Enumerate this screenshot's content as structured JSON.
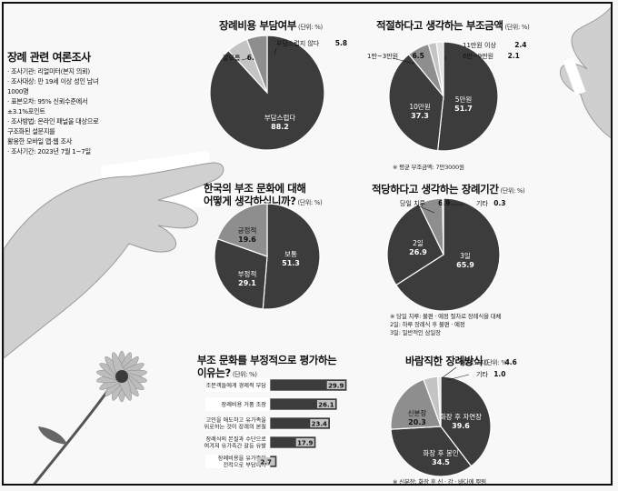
{
  "colors": {
    "dark": "#3c3c3c",
    "mid": "#8e8e8e",
    "light": "#c4c4c4",
    "pale": "#e2e2e2"
  },
  "survey": {
    "title": "장례 관련 여론조사",
    "lines": [
      "· 조사기관: 리얼미터(본지 의뢰)",
      "· 조사대상: 만 19세 이상 성인 남녀",
      "   1000명",
      "· 표본오차: 95% 신뢰수준에서",
      "   ±3.1%포인트",
      "· 조사방법: 온라인 패널을 대상으로",
      "   구조화된 설문지를",
      "   활용한 모바일 앱·웹 조사",
      "· 조사기간: 2023년 7월 1~7일"
    ]
  },
  "chart_data": [
    {
      "type": "pie",
      "title": "장례비용 부담여부",
      "unit": "(단위: %)",
      "slices": [
        {
          "label": "부담스럽다",
          "value": 88.2
        },
        {
          "label": "잘모름",
          "value": 6.0
        },
        {
          "label": "부담스럽지 않다",
          "value": 5.8
        }
      ]
    },
    {
      "type": "pie",
      "title": "적절하다고 생각하는 부조금액",
      "unit": "(단위: %)",
      "slices": [
        {
          "label": "5만원",
          "value": 51.7
        },
        {
          "label": "10만원",
          "value": 37.3
        },
        {
          "label": "1만~3만원",
          "value": 6.5
        },
        {
          "label": "11만원 이상",
          "value": 2.4
        },
        {
          "label": "6만~9만원",
          "value": 2.1
        }
      ],
      "note": "※ 평균 부조금액: 7만3000원"
    },
    {
      "type": "pie",
      "title_lines": [
        "한국의 부조 문화에 대해",
        "어떻게 생각하십니까?"
      ],
      "unit": "(단위: %)",
      "slices": [
        {
          "label": "보통",
          "value": 51.3
        },
        {
          "label": "부정적",
          "value": 29.1
        },
        {
          "label": "긍정적",
          "value": 19.6
        }
      ]
    },
    {
      "type": "pie",
      "title": "적당하다고 생각하는 장례기간",
      "unit": "(단위: %)",
      "slices": [
        {
          "label": "3일",
          "value": 65.9
        },
        {
          "label": "2일",
          "value": 26.9
        },
        {
          "label": "당일 치루",
          "value": 6.9
        },
        {
          "label": "기타",
          "value": 0.3
        }
      ],
      "notes": [
        "※ 당일 치루: 불편 · 예정 절차로 장례식을 대체",
        "   2일: 하루 장례식 후 불편 · 예정",
        "   3일: 일반적인 삼일장"
      ]
    },
    {
      "type": "bar",
      "title_lines": [
        "부조 문화를 부정적으로 평가하는",
        "이유는?"
      ],
      "unit": "(단위: %)",
      "categories": [
        [
          "조문객들에게 경제적 부담"
        ],
        [
          "장례비용 거품 조장"
        ],
        [
          "고인을 애도하고 유가족을",
          "위로하는 것이 장례의 본질"
        ],
        [
          "장례식의 본질과 수단으로",
          "여겨져 유가족간 갈등 유발"
        ],
        [
          "장례비용을 유가족이",
          "전적으로 부담해야"
        ]
      ],
      "values": [
        29.9,
        26.1,
        23.4,
        17.9,
        2.7
      ],
      "xlim": [
        0,
        30
      ]
    },
    {
      "type": "pie",
      "title": "바람직한 장례방식",
      "unit": "(단위: %)",
      "slices": [
        {
          "label": "화장 후 자연장",
          "value": 39.6
        },
        {
          "label": "화장 후 봉인",
          "value": 34.5
        },
        {
          "label": "신분장",
          "value": 20.3
        },
        {
          "label": "매장(묘지)",
          "value": 4.6
        },
        {
          "label": "기타",
          "value": 1.0
        }
      ],
      "note": "※ 신분장: 화장 후 신 · 강 · 바다에 뿌림"
    }
  ]
}
